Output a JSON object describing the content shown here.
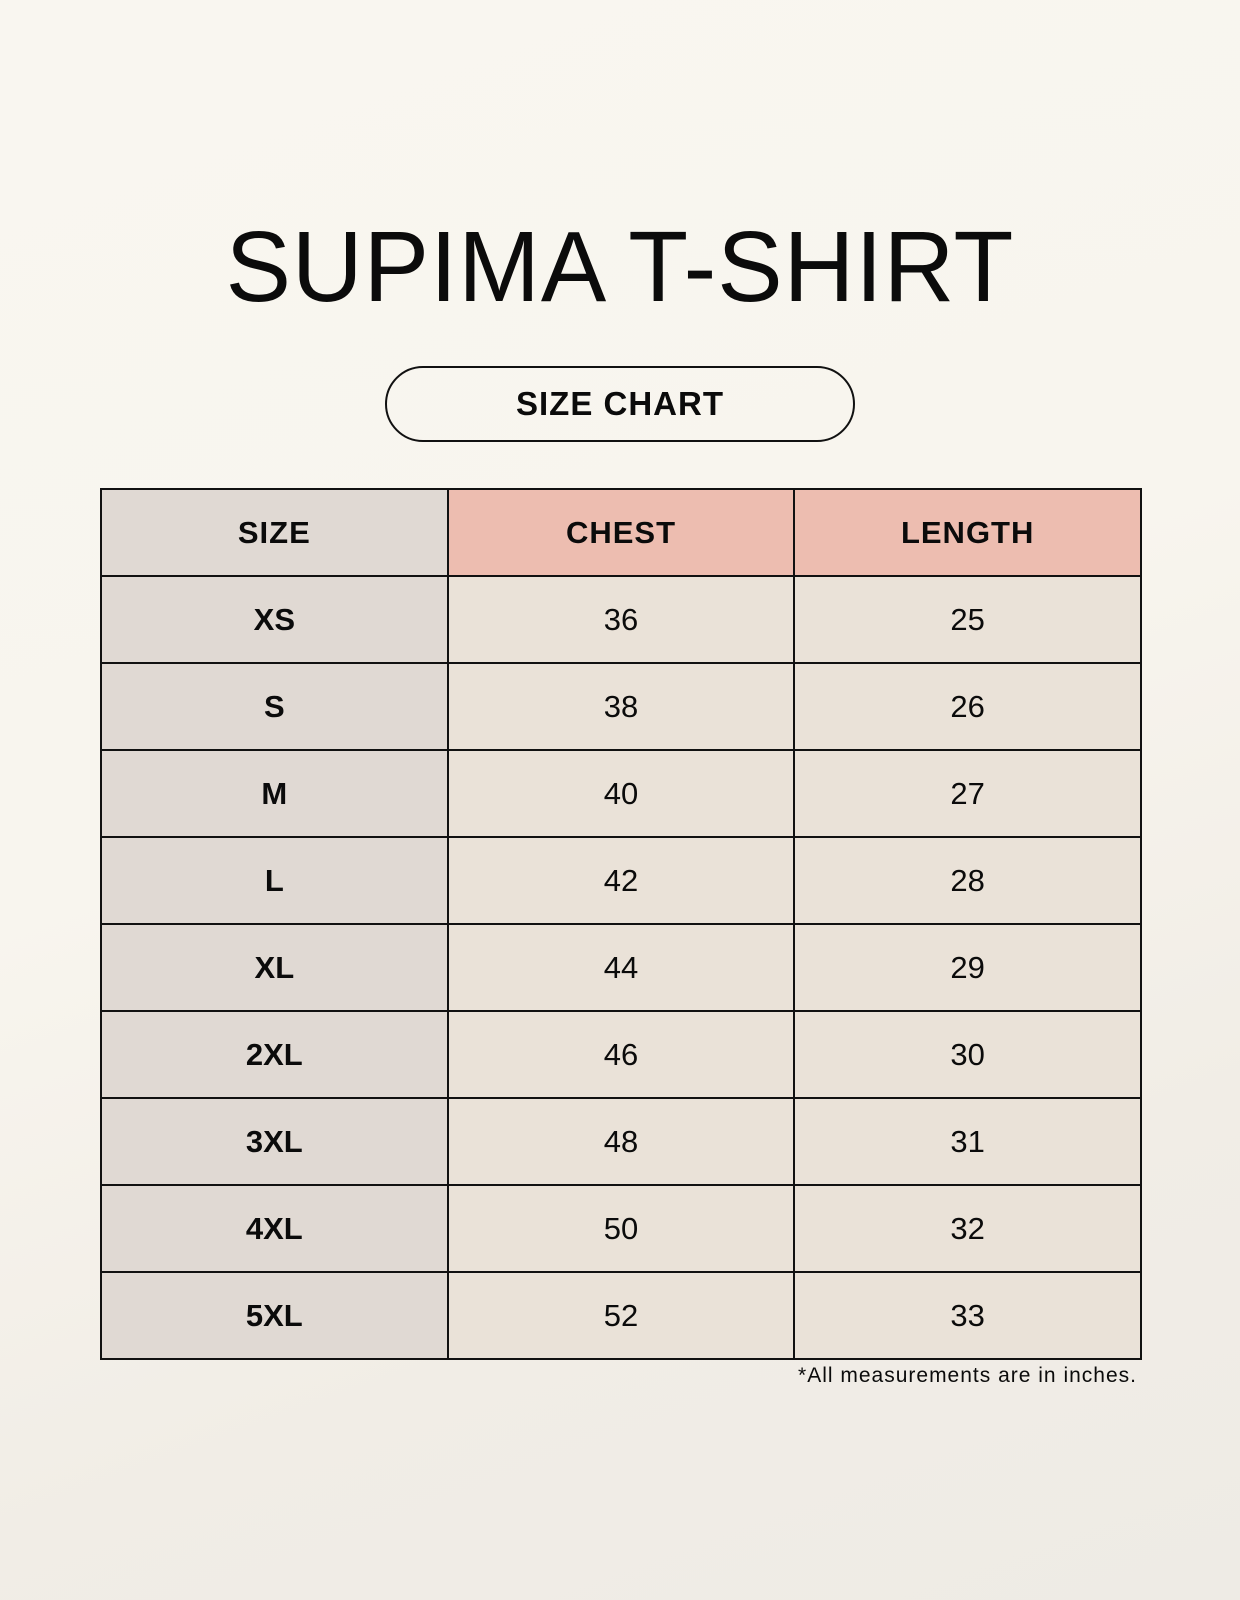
{
  "title": "SUPIMA T-SHIRT",
  "subtitle": "SIZE CHART",
  "table": {
    "headers": [
      "SIZE",
      "CHEST",
      "LENGTH"
    ],
    "rows": [
      [
        "XS",
        "36",
        "25"
      ],
      [
        "S",
        "38",
        "26"
      ],
      [
        "M",
        "40",
        "27"
      ],
      [
        "L",
        "42",
        "28"
      ],
      [
        "XL",
        "44",
        "29"
      ],
      [
        "2XL",
        "46",
        "30"
      ],
      [
        "3XL",
        "48",
        "31"
      ],
      [
        "4XL",
        "50",
        "32"
      ],
      [
        "5XL",
        "52",
        "33"
      ]
    ]
  },
  "footnote": "*All measurements are in inches.",
  "colors": {
    "size_column": "#e0d9d3",
    "measure_header": "#edbdb0",
    "measure_cells": "#eae2d8"
  }
}
